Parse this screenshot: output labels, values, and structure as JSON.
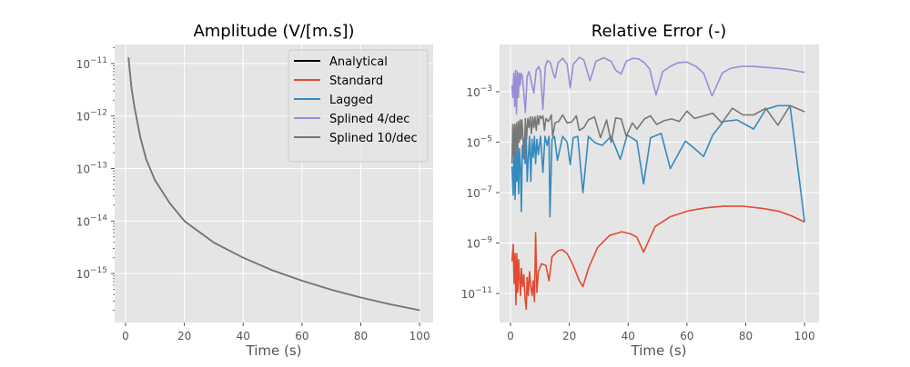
{
  "chart_data": [
    {
      "type": "line",
      "title": "Amplitude (V/[m.s])",
      "xlabel": "Time (s)",
      "ylabel": "",
      "xscale": "linear",
      "yscale": "log",
      "xlim": [
        -3.7,
        104.6
      ],
      "ylim": [
        1.17e-16,
        2.3e-11
      ],
      "xticks": [
        0,
        20,
        40,
        60,
        80,
        100
      ],
      "yticks": [
        1e-11,
        1e-12,
        1e-13,
        1e-14,
        1e-15
      ],
      "ytick_labels": [
        "10^-11",
        "10^-12",
        "10^-13",
        "10^-14",
        "10^-15"
      ],
      "grid": true,
      "legend": "top-right",
      "x": [
        1,
        2,
        3,
        5,
        7,
        10,
        15,
        20,
        30,
        40,
        50,
        60,
        70,
        80,
        90,
        100
      ],
      "y": [
        1.3e-11,
        3.5e-12,
        1.5e-12,
        4e-13,
        1.5e-13,
        6e-14,
        2.2e-14,
        1e-14,
        3.9e-15,
        2e-15,
        1.15e-15,
        7.3e-16,
        4.9e-16,
        3.5e-16,
        2.6e-16,
        2e-16
      ],
      "series": [
        {
          "name": "Analytical",
          "color": "#000000"
        },
        {
          "name": "Standard",
          "color": "#E24A33"
        },
        {
          "name": "Lagged",
          "color": "#348ABD"
        },
        {
          "name": "Splined 4/dec",
          "color": "#988ED5"
        },
        {
          "name": "Splined 10/dec",
          "color": "#777777"
        }
      ]
    },
    {
      "type": "line",
      "title": "Relative Error (-)",
      "xlabel": "Time (s)",
      "ylabel": "",
      "xscale": "linear",
      "yscale": "log",
      "xlim": [
        -3.7,
        104.9
      ],
      "ylim": [
        7.1e-13,
        0.074
      ],
      "xticks": [
        0,
        20,
        40,
        60,
        80,
        100
      ],
      "yticks": [
        0.001,
        1e-05,
        1e-07,
        1e-09,
        1e-11
      ],
      "ytick_labels": [
        "10^-3",
        "10^-5",
        "10^-7",
        "10^-9",
        "10^-11"
      ],
      "grid": true,
      "series": [
        {
          "name": "Standard",
          "color": "#E24A33",
          "x": [
            0.52,
            0.93,
            1.24,
            1.55,
            1.86,
            2.16,
            2.47,
            2.78,
            3.09,
            3.4,
            3.71,
            4.12,
            4.54,
            4.95,
            5.36,
            5.67,
            6.08,
            6.49,
            6.91,
            7.32,
            7.73,
            8.14,
            8.56,
            8.97,
            9.48,
            10.52,
            12.06,
            13.09,
            14.12,
            16.19,
            17.73,
            19.28,
            21.34,
            23.4,
            24.64,
            26.49,
            29.59,
            33.71,
            37.84,
            40.93,
            42.99,
            45.26,
            49.18,
            54.33,
            60.52,
            66.7,
            72.89,
            79.07,
            86.29,
            91.44,
            95.57,
            100
          ],
          "y": [
            1.9e-10,
            8.7e-10,
            2.5e-11,
            3.8e-10,
            3.6e-12,
            3.8e-10,
            1.1e-11,
            2.2e-10,
            4.3e-11,
            8.3e-12,
            9.8e-11,
            1.9e-11,
            5.6e-11,
            6.3e-12,
            2.4e-12,
            4.3e-11,
            8.3e-12,
            7.4e-11,
            1.9e-11,
            8.3e-12,
            3.2e-11,
            4.8e-12,
            2.6e-09,
            1.1e-11,
            7.4e-11,
            1.5e-10,
            1.3e-10,
            3.2e-11,
            2.9e-10,
            5e-10,
            5.4e-10,
            3.8e-10,
            1.3e-10,
            3.2e-11,
            1.9e-11,
            9.8e-11,
            6.6e-10,
            2e-09,
            2.8e-09,
            2.3e-09,
            1.7e-09,
            4.4e-10,
            4.5e-09,
            1.1e-08,
            1.9e-08,
            2.5e-08,
            2.9e-08,
            2.9e-08,
            2.3e-08,
            1.8e-08,
            1.2e-08,
            6.8e-09
          ]
        },
        {
          "name": "Lagged",
          "color": "#348ABD",
          "x": [
            0.52,
            0.93,
            1.24,
            1.55,
            1.86,
            2.16,
            2.47,
            2.78,
            3.09,
            3.4,
            3.71,
            4.02,
            4.33,
            4.64,
            4.95,
            5.36,
            5.67,
            6.08,
            6.49,
            6.91,
            7.32,
            7.73,
            8.14,
            8.56,
            8.97,
            9.48,
            10.21,
            11.03,
            11.75,
            12.47,
            13.09,
            13.4,
            14.12,
            14.95,
            15.98,
            17.73,
            19.28,
            20.31,
            21.34,
            22.89,
            24.64,
            26.49,
            28.56,
            31.13,
            34.23,
            37.32,
            39.69,
            42.99,
            45.26,
            47.63,
            51.24,
            54.33,
            59.48,
            62.58,
            65.67,
            68.76,
            72.37,
            77.01,
            82.68,
            86.8,
            90.93,
            95.05,
            100
          ],
          "y": [
            1.1e-06,
            7.9e-08,
            1.7e-05,
            5.4e-08,
            4.3e-06,
            2.8e-07,
            9.8e-06,
            9.1e-08,
            5.6e-06,
            1.1e-06,
            1.8e-08,
            7.4e-06,
            2.5e-06,
            1.3e-05,
            1.4e-06,
            1.7e-05,
            2.8e-07,
            2.5e-06,
            1.7e-05,
            2.8e-07,
            1.3e-05,
            2.5e-06,
            1.7e-05,
            1.4e-06,
            1.3e-05,
            3.2e-06,
            1.7e-05,
            6.3e-07,
            1.7e-05,
            7.4e-06,
            1.7e-05,
            1.1e-08,
            1.3e-05,
            1.7e-05,
            1.9e-06,
            1.7e-05,
            9.8e-06,
            1.3e-06,
            1.5e-05,
            1.7e-05,
            1e-07,
            1.7e-05,
            9.8e-06,
            7.4e-06,
            1.7e-05,
            2.1e-06,
            1.9e-05,
            1.1e-05,
            2.2e-07,
            1.5e-05,
            2.2e-05,
            8.9e-07,
            1.1e-05,
            5.6e-06,
            2.7e-06,
            1.9e-05,
            6.6e-05,
            7.6e-05,
            3.3e-05,
            0.0002,
            0.00028,
            0.00028,
            6.8e-09
          ]
        },
        {
          "name": "Splined 4/dec",
          "color": "#988ED5",
          "x": [
            0.52,
            0.82,
            1.13,
            1.44,
            1.75,
            2.06,
            2.37,
            2.68,
            2.99,
            3.3,
            3.61,
            4.02,
            4.43,
            5.05,
            5.67,
            6.29,
            6.91,
            7.94,
            8.76,
            9.59,
            10.21,
            11.03,
            11.86,
            12.58,
            13.61,
            14.64,
            15.15,
            16.19,
            17.73,
            19.28,
            20.31,
            21.34,
            23.4,
            24.95,
            27.01,
            29.07,
            31.65,
            34.23,
            35.77,
            37.63,
            39.38,
            41.44,
            43.51,
            45.57,
            47.32,
            49.48,
            51.75,
            54.33,
            56.91,
            60.0,
            63.09,
            65.67,
            68.56,
            72.06,
            74.95,
            78.56,
            82.16,
            87.32,
            93.51,
            100
          ],
          "y": [
            0.0018,
            0.00059,
            0.0054,
            0.00026,
            0.0071,
            0.00013,
            0.0062,
            0.00059,
            0.0054,
            0.0018,
            0.0054,
            0.0041,
            0.0013,
            0.00015,
            0.0041,
            0.0062,
            0.0031,
            0.00089,
            0.0071,
            0.0098,
            0.0062,
            0.0002,
            0.01,
            0.017,
            0.014,
            0.0047,
            0.0035,
            0.014,
            0.021,
            0.012,
            0.0014,
            0.012,
            0.023,
            0.018,
            0.0027,
            0.016,
            0.022,
            0.016,
            0.0071,
            0.005,
            0.016,
            0.021,
            0.02,
            0.014,
            0.0079,
            0.00074,
            0.0062,
            0.01,
            0.014,
            0.015,
            0.01,
            0.0054,
            0.00068,
            0.0056,
            0.0085,
            0.01,
            0.01,
            0.0091,
            0.0079,
            0.0058
          ]
        },
        {
          "name": "Splined 10/dec",
          "color": "#777777",
          "x": [
            0.52,
            0.82,
            1.13,
            1.44,
            1.75,
            2.06,
            2.37,
            2.68,
            2.99,
            3.3,
            3.61,
            3.92,
            4.23,
            4.64,
            5.05,
            5.46,
            5.88,
            6.29,
            6.7,
            7.11,
            7.53,
            7.94,
            8.35,
            8.76,
            9.18,
            9.59,
            10.0,
            10.52,
            11.03,
            11.55,
            12.06,
            12.89,
            13.92,
            14.33,
            15.15,
            16.39,
            17.73,
            19.28,
            20.82,
            22.37,
            23.4,
            24.95,
            26.49,
            28.56,
            30.62,
            32.68,
            34.23,
            35.77,
            37.63,
            39.38,
            41.44,
            42.99,
            45.57,
            47.63,
            49.69,
            52.27,
            54.85,
            57.42,
            60.0,
            62.58,
            65.67,
            68.76,
            71.86,
            75.46,
            79.07,
            82.68,
            86.8,
            90.93,
            95.05,
            100
          ],
          "y": [
            1.4e-06,
            5e-05,
            2.5e-06,
            5e-05,
            3.2e-06,
            5.8e-05,
            4.3e-06,
            6.6e-05,
            9.8e-06,
            7.6e-05,
            1.3e-05,
            7.6e-05,
            1.7e-05,
            2.1e-06,
            8.7e-05,
            1.3e-05,
            8.7e-05,
            3.8e-05,
            0.0001,
            2.2e-05,
            0.0001,
            3.8e-05,
            0.0001,
            2.9e-05,
            0.00011,
            5e-05,
            0.00011,
            8.7e-05,
            0.00011,
            2.9e-05,
            8.7e-05,
            6.6e-05,
            0.00012,
            1.7e-05,
            5.8e-05,
            6.6e-05,
            0.00012,
            5.8e-05,
            6.3e-05,
            0.00011,
            2.9e-05,
            3.8e-05,
            7.6e-05,
            0.0001,
            1.5e-05,
            7.6e-05,
            9.8e-06,
            9.1e-05,
            8.3e-05,
            1.7e-05,
            5.8e-05,
            3.3e-05,
            8.3e-05,
            0.00011,
            5e-05,
            7.1e-05,
            8.3e-05,
            6.6e-05,
            0.00017,
            8.7e-05,
            0.00011,
            0.00014,
            5.8e-05,
            0.00022,
            0.00012,
            0.00012,
            0.00022,
            4.7e-05,
            0.00028,
            0.00016
          ]
        }
      ]
    }
  ]
}
